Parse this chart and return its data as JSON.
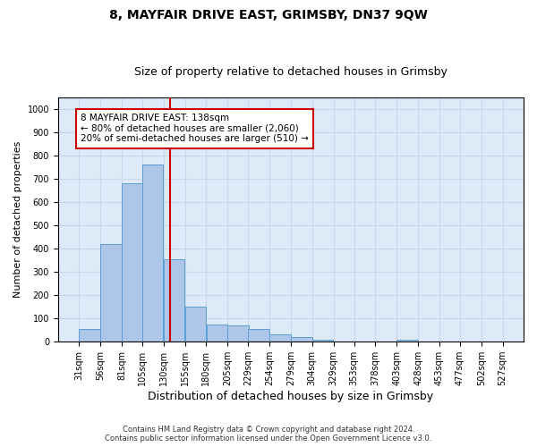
{
  "title": "8, MAYFAIR DRIVE EAST, GRIMSBY, DN37 9QW",
  "subtitle": "Size of property relative to detached houses in Grimsby",
  "xlabel": "Distribution of detached houses by size in Grimsby",
  "ylabel": "Number of detached properties",
  "footer_line1": "Contains HM Land Registry data © Crown copyright and database right 2024.",
  "footer_line2": "Contains public sector information licensed under the Open Government Licence v3.0.",
  "bar_edges": [
    31,
    56,
    81,
    105,
    130,
    155,
    180,
    205,
    229,
    254,
    279,
    304,
    329,
    353,
    378,
    403,
    428,
    453,
    477,
    502,
    527
  ],
  "bar_heights": [
    55,
    420,
    680,
    760,
    355,
    150,
    75,
    70,
    55,
    30,
    20,
    8,
    0,
    0,
    0,
    8,
    0,
    0,
    0,
    0,
    0
  ],
  "bar_color": "#aec6e8",
  "bar_edgecolor": "#5a9fd4",
  "property_line_x": 138,
  "property_line_color": "#cc0000",
  "ylim": [
    0,
    1050
  ],
  "yticks": [
    0,
    100,
    200,
    300,
    400,
    500,
    600,
    700,
    800,
    900,
    1000
  ],
  "annotation_line1": "8 MAYFAIR DRIVE EAST: 138sqm",
  "annotation_line2": "← 80% of detached houses are smaller (2,060)",
  "annotation_line3": "20% of semi-detached houses are larger (510) →",
  "annotation_box_color": "#cc0000",
  "grid_color": "#c8d8e8",
  "background_color": "#ddeaf7",
  "title_fontsize": 10,
  "subtitle_fontsize": 9,
  "tick_label_fontsize": 7,
  "ylabel_fontsize": 8,
  "xlabel_fontsize": 9
}
